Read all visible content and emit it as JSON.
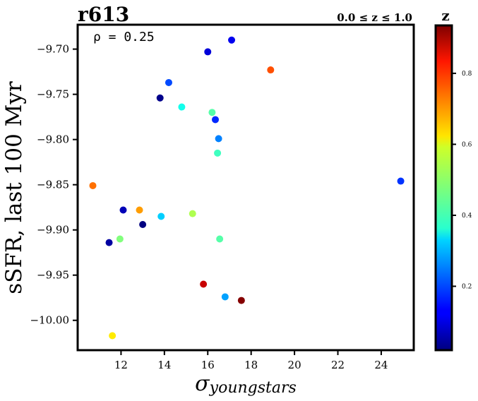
{
  "chart_data": {
    "type": "scatter",
    "title": "r613",
    "subtitle": "0.0 ≤ z ≤ 1.0",
    "annotation": "ρ = 0.25",
    "xlabel": "σ",
    "xlabel_sub": "youngstars",
    "ylabel": "sSFR, last 100 Myr",
    "colorbar_label": "z",
    "colormap": "jet",
    "xlim": [
      10.0,
      25.5
    ],
    "ylim": [
      -10.033,
      -9.673
    ],
    "clim": [
      0.02,
      0.935
    ],
    "xticks": [
      12,
      14,
      16,
      18,
      20,
      22,
      24
    ],
    "yticks": [
      -9.7,
      -9.75,
      -9.8,
      -9.85,
      -9.9,
      -9.95,
      -10.0
    ],
    "ytick_labels": [
      "−9.70",
      "−9.75",
      "−9.80",
      "−9.85",
      "−9.90",
      "−9.95",
      "−10.00"
    ],
    "cticks": [
      0.2,
      0.4,
      0.6,
      0.8
    ],
    "ctick_labels": [
      "0.2",
      "0.4",
      "0.6",
      "0.8"
    ],
    "grid": false,
    "points": [
      {
        "x": 17.1,
        "y": -9.69,
        "z": 0.12
      },
      {
        "x": 16.0,
        "y": -9.703,
        "z": 0.1
      },
      {
        "x": 18.9,
        "y": -9.723,
        "z": 0.75
      },
      {
        "x": 14.2,
        "y": -9.737,
        "z": 0.2
      },
      {
        "x": 13.8,
        "y": -9.754,
        "z": 0.03
      },
      {
        "x": 14.8,
        "y": -9.764,
        "z": 0.38
      },
      {
        "x": 16.2,
        "y": -9.77,
        "z": 0.44
      },
      {
        "x": 16.35,
        "y": -9.778,
        "z": 0.17
      },
      {
        "x": 16.5,
        "y": -9.799,
        "z": 0.25
      },
      {
        "x": 16.45,
        "y": -9.815,
        "z": 0.42
      },
      {
        "x": 24.9,
        "y": -9.846,
        "z": 0.18
      },
      {
        "x": 10.7,
        "y": -9.851,
        "z": 0.72
      },
      {
        "x": 12.1,
        "y": -9.878,
        "z": 0.07
      },
      {
        "x": 12.85,
        "y": -9.878,
        "z": 0.68
      },
      {
        "x": 15.3,
        "y": -9.882,
        "z": 0.52
      },
      {
        "x": 13.85,
        "y": -9.885,
        "z": 0.32
      },
      {
        "x": 13.0,
        "y": -9.894,
        "z": 0.02
      },
      {
        "x": 11.95,
        "y": -9.91,
        "z": 0.48
      },
      {
        "x": 16.55,
        "y": -9.91,
        "z": 0.44
      },
      {
        "x": 11.45,
        "y": -9.914,
        "z": 0.05
      },
      {
        "x": 15.8,
        "y": -9.96,
        "z": 0.87
      },
      {
        "x": 16.8,
        "y": -9.974,
        "z": 0.28
      },
      {
        "x": 17.55,
        "y": -9.978,
        "z": 0.93
      },
      {
        "x": 11.6,
        "y": -10.017,
        "z": 0.61
      }
    ]
  }
}
